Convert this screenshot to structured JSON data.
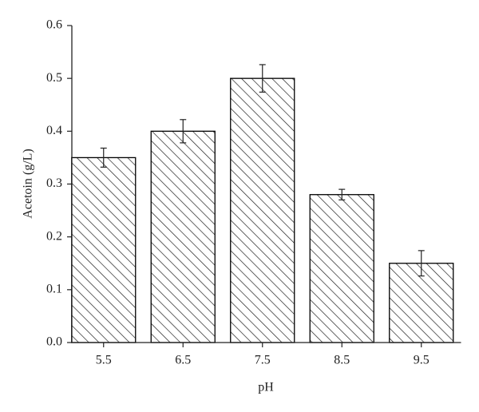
{
  "chart_data": {
    "type": "bar",
    "x_label": "pH",
    "y_label": "Acetoin (g/L)",
    "categories": [
      "5.5",
      "6.5",
      "7.5",
      "8.5",
      "9.5"
    ],
    "values": [
      0.35,
      0.4,
      0.5,
      0.28,
      0.15
    ],
    "errors": [
      0.018,
      0.022,
      0.026,
      0.01,
      0.024
    ],
    "color": "#000000",
    "ylim": [
      0,
      0.6
    ],
    "yticks": [
      {
        "value": 0,
        "label": "0.0"
      },
      0.1,
      0.2,
      0.3,
      0.4,
      0.5,
      0.6
    ],
    "grid": false
  }
}
